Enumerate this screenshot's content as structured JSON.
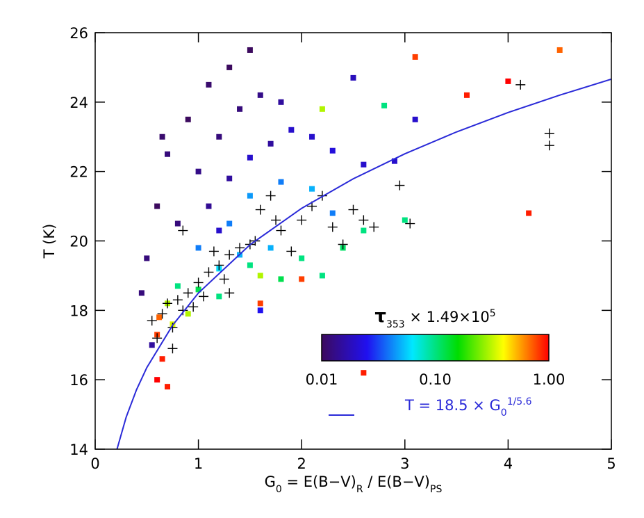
{
  "chart_data": {
    "type": "scatter",
    "x_label": [
      "G",
      "0",
      " = E(B−V)",
      "R",
      " / E(B−V)",
      "PS"
    ],
    "y_label": "T (K)",
    "xlim": [
      0,
      5
    ],
    "ylim": [
      14,
      26
    ],
    "xticks": [
      0,
      1,
      2,
      3,
      4,
      5
    ],
    "yticks": [
      14,
      16,
      18,
      20,
      22,
      24,
      26
    ],
    "density": {
      "x": [
        0.5,
        0.6,
        0.7,
        0.9,
        1.1,
        1.3,
        1.5,
        0.8,
        1.0,
        1.2,
        1.4,
        1.6,
        1.8,
        0.45,
        0.55,
        1.7,
        0.65,
        1.1,
        1.3,
        1.9,
        2.1,
        2.3,
        1.5,
        1.2,
        2.6,
        2.9,
        2.5,
        3.1,
        1.6,
        1.0,
        1.3,
        1.5,
        1.8,
        2.1,
        1.4,
        2.3,
        1.2,
        1.7,
        0.8,
        1.0,
        1.2,
        1.5,
        2.0,
        2.4,
        2.6,
        1.8,
        2.2,
        3.0,
        2.8,
        0.7,
        0.75,
        0.9,
        1.6,
        2.2,
        0.6,
        0.65,
        0.6,
        0.7,
        0.62,
        1.6,
        2.0,
        3.6,
        4.0,
        4.2,
        2.6,
        3.1,
        4.5
      ],
      "y": [
        19.5,
        21,
        22.5,
        23.5,
        24.5,
        25,
        25.5,
        20.5,
        22,
        23,
        23.8,
        24.2,
        24,
        18.5,
        17,
        22.8,
        23,
        21,
        21.8,
        23.2,
        23,
        22.6,
        22.4,
        20.3,
        22.2,
        22.3,
        24.7,
        23.5,
        18,
        19.8,
        20.5,
        21.3,
        21.7,
        21.5,
        19.6,
        20.8,
        19.2,
        19.8,
        18.7,
        18.6,
        18.4,
        19.3,
        19.5,
        19.8,
        20.3,
        18.9,
        19.0,
        20.6,
        23.9,
        18.2,
        17.6,
        17.9,
        19.0,
        23.8,
        17.3,
        16.6,
        16.0,
        15.8,
        17.8,
        18.2,
        18.9,
        24.2,
        24.6,
        20.8,
        16.2,
        25.3,
        25.5
      ],
      "tau": [
        0.012,
        0.01,
        0.012,
        0.01,
        0.011,
        0.01,
        0.01,
        0.012,
        0.013,
        0.012,
        0.012,
        0.013,
        0.015,
        0.012,
        0.015,
        0.015,
        0.011,
        0.014,
        0.015,
        0.02,
        0.02,
        0.022,
        0.02,
        0.02,
        0.02,
        0.02,
        0.018,
        0.02,
        0.025,
        0.04,
        0.04,
        0.045,
        0.04,
        0.05,
        0.05,
        0.04,
        0.06,
        0.05,
        0.1,
        0.12,
        0.1,
        0.1,
        0.1,
        0.11,
        0.1,
        0.12,
        0.1,
        0.1,
        0.1,
        0.3,
        0.35,
        0.3,
        0.3,
        0.3,
        0.8,
        0.9,
        1,
        0.9,
        0.7,
        0.8,
        0.8,
        0.9,
        1,
        0.9,
        0.9,
        0.8,
        0.7
      ]
    },
    "crosses": {
      "x": [
        0.55,
        0.6,
        0.65,
        0.7,
        0.75,
        0.8,
        0.85,
        0.9,
        0.95,
        1.0,
        1.05,
        1.1,
        1.2,
        1.25,
        1.3,
        1.4,
        1.5,
        1.55,
        1.6,
        1.7,
        1.75,
        1.8,
        1.9,
        2.0,
        2.1,
        2.2,
        2.3,
        2.4,
        2.5,
        2.6,
        2.7,
        2.95,
        3.05,
        4.12,
        4.4,
        4.4,
        0.85,
        1.15,
        0.75,
        1.3
      ],
      "y": [
        17.7,
        17.2,
        17.9,
        18.2,
        17.5,
        18.3,
        18.0,
        18.5,
        18.1,
        18.8,
        18.4,
        19.1,
        19.3,
        18.9,
        19.6,
        19.8,
        19.9,
        20.0,
        20.9,
        21.3,
        20.6,
        20.3,
        19.7,
        20.6,
        21.0,
        21.3,
        20.4,
        19.9,
        20.9,
        20.6,
        20.4,
        21.6,
        20.5,
        24.5,
        23.1,
        22.75,
        20.3,
        19.7,
        16.9,
        18.5
      ]
    },
    "fit": {
      "label": [
        "T = 18.5 × G",
        "0",
        "1/5.6"
      ],
      "color": "#2a2ad8",
      "x": [
        0.2,
        0.3,
        0.4,
        0.5,
        0.75,
        1,
        1.5,
        2,
        2.5,
        3,
        3.5,
        4,
        4.5,
        5
      ],
      "values": [
        13.88,
        14.92,
        15.71,
        16.35,
        17.57,
        18.5,
        19.89,
        20.94,
        21.79,
        22.51,
        23.14,
        23.7,
        24.2,
        24.66
      ]
    },
    "colorbar": {
      "title": [
        "τ",
        "353",
        " × 1.49×10",
        "5"
      ],
      "lim": [
        0.01,
        1
      ],
      "log": true,
      "ticks": [
        0.01,
        {
          "value": 0.1,
          "label": "0.10"
        },
        {
          "value": 1,
          "label": "1.00"
        }
      ],
      "colors": [
        "#3c0a5e",
        "#2010f0",
        "#00e8ff",
        "#00dd00",
        "#ffff00",
        "#ff0000"
      ]
    }
  }
}
